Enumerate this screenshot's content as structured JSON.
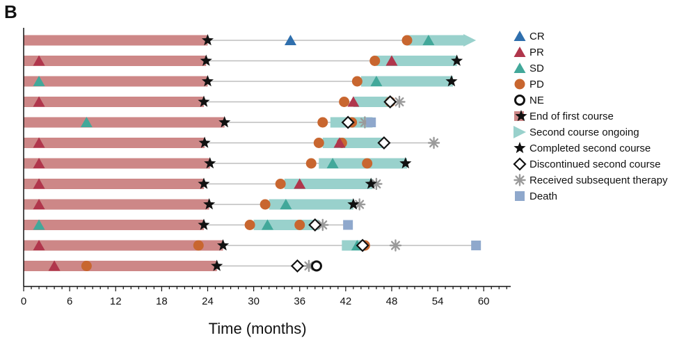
{
  "panel_label": "B",
  "chart_data": {
    "type": "swimmer",
    "xlabel": "Time (months)",
    "xlim": [
      0,
      63
    ],
    "xticks": [
      0,
      6,
      12,
      18,
      24,
      30,
      36,
      42,
      48,
      54,
      60
    ],
    "colors": {
      "first_course": "#cd8787",
      "second_course": "#99d1cc",
      "line": "#bdbdbd",
      "CR": "#2f6fad",
      "PR": "#b0364c",
      "SD": "#42a89a",
      "PD": "#c8662f",
      "NE": "#111111",
      "star": "#111111",
      "diamond": "#111111",
      "asterisk": "#9a9a9a",
      "death": "#8fa8cc"
    },
    "legend": [
      {
        "key": "CR",
        "label": "CR",
        "symbol": "triangle"
      },
      {
        "key": "PR",
        "label": "PR",
        "symbol": "triangle"
      },
      {
        "key": "SD",
        "label": "SD",
        "symbol": "triangle"
      },
      {
        "key": "PD",
        "label": "PD",
        "symbol": "circle"
      },
      {
        "key": "NE",
        "label": "NE",
        "symbol": "ring"
      },
      {
        "key": "end_first",
        "label": "End of first course",
        "symbol": "bar-star"
      },
      {
        "key": "second_ongoing",
        "label": "Second course ongoing",
        "symbol": "arrow"
      },
      {
        "key": "completed_second",
        "label": "Completed second course",
        "symbol": "star"
      },
      {
        "key": "discontinued_second",
        "label": "Discontinued second course",
        "symbol": "diamond"
      },
      {
        "key": "subsequent",
        "label": "Received subsequent therapy",
        "symbol": "asterisk"
      },
      {
        "key": "death",
        "label": "Death",
        "symbol": "square"
      }
    ],
    "patients": [
      {
        "first_end": 24.0,
        "line_end": 58.0,
        "second": [
          50.0,
          57.5
        ],
        "arrow": true,
        "markers": [
          [
            "star",
            24.0
          ],
          [
            "CR",
            34.8
          ],
          [
            "PD",
            50.0
          ],
          [
            "SD",
            52.8
          ]
        ]
      },
      {
        "first_end": 23.8,
        "line_end": 56.5,
        "second": [
          46.0,
          56.5
        ],
        "markers": [
          [
            "PR",
            2.0
          ],
          [
            "star",
            23.8
          ],
          [
            "PD",
            45.8
          ],
          [
            "PR",
            48.0
          ],
          [
            "star",
            56.5
          ]
        ]
      },
      {
        "first_end": 24.0,
        "line_end": 56.0,
        "second": [
          44.0,
          56.0
        ],
        "markers": [
          [
            "SD",
            2.0
          ],
          [
            "star",
            24.0
          ],
          [
            "PD",
            43.5
          ],
          [
            "SD",
            46.0
          ],
          [
            "star",
            55.8
          ]
        ]
      },
      {
        "first_end": 23.5,
        "line_end": 49.0,
        "second": [
          43.0,
          48.0
        ],
        "markers": [
          [
            "PR",
            2.0
          ],
          [
            "star",
            23.5
          ],
          [
            "PD",
            41.8
          ],
          [
            "PR",
            43.0
          ],
          [
            "PD",
            47.8
          ],
          [
            "diamond",
            47.8
          ],
          [
            "asterisk",
            49.0
          ]
        ]
      },
      {
        "first_end": 26.2,
        "line_end": 45.5,
        "second": [
          40.0,
          45.5
        ],
        "markers": [
          [
            "SD",
            8.2
          ],
          [
            "star",
            26.2
          ],
          [
            "PD",
            39.0
          ],
          [
            "PD",
            42.8
          ],
          [
            "diamond",
            42.3
          ],
          [
            "asterisk",
            44.5
          ],
          [
            "death",
            45.3
          ]
        ]
      },
      {
        "first_end": 23.6,
        "line_end": 53.5,
        "second": [
          39.0,
          47.0
        ],
        "markers": [
          [
            "PR",
            2.0
          ],
          [
            "star",
            23.6
          ],
          [
            "PD",
            38.5
          ],
          [
            "PD",
            41.5
          ],
          [
            "PR",
            41.2
          ],
          [
            "diamond",
            47.0
          ],
          [
            "asterisk",
            53.5
          ]
        ]
      },
      {
        "first_end": 24.3,
        "line_end": 50.0,
        "second": [
          38.5,
          50.0
        ],
        "markers": [
          [
            "PR",
            2.0
          ],
          [
            "star",
            24.3
          ],
          [
            "PD",
            37.5
          ],
          [
            "SD",
            40.3
          ],
          [
            "PD",
            44.8
          ],
          [
            "star",
            49.8
          ]
        ]
      },
      {
        "first_end": 23.5,
        "line_end": 46.0,
        "second": [
          34.0,
          45.5
        ],
        "markers": [
          [
            "PR",
            2.0
          ],
          [
            "star",
            23.5
          ],
          [
            "PD",
            33.5
          ],
          [
            "PR",
            36.0
          ],
          [
            "star",
            45.3
          ],
          [
            "asterisk",
            46.0
          ]
        ]
      },
      {
        "first_end": 24.2,
        "line_end": 43.8,
        "second": [
          32.0,
          43.0
        ],
        "markers": [
          [
            "PR",
            2.0
          ],
          [
            "star",
            24.2
          ],
          [
            "PD",
            31.5
          ],
          [
            "SD",
            34.2
          ],
          [
            "star",
            43.0
          ],
          [
            "asterisk",
            43.8
          ]
        ]
      },
      {
        "first_end": 23.5,
        "line_end": 42.5,
        "second": [
          30.0,
          38.5
        ],
        "markers": [
          [
            "SD",
            2.0
          ],
          [
            "star",
            23.5
          ],
          [
            "PD",
            29.5
          ],
          [
            "SD",
            31.8
          ],
          [
            "PD",
            36.0
          ],
          [
            "diamond",
            38.0
          ],
          [
            "asterisk",
            39.0
          ],
          [
            "death",
            42.3
          ]
        ]
      },
      {
        "first_end": 26.0,
        "line_end": 59.0,
        "second": [
          41.5,
          44.5
        ],
        "markers": [
          [
            "PR",
            2.0
          ],
          [
            "star",
            26.0
          ],
          [
            "PD",
            22.8
          ],
          [
            "SD",
            43.5
          ],
          [
            "PD",
            44.5
          ],
          [
            "diamond",
            44.2
          ],
          [
            "asterisk",
            48.5
          ],
          [
            "death",
            59.0
          ]
        ]
      },
      {
        "first_end": 25.2,
        "line_end": 38.6,
        "second": null,
        "markers": [
          [
            "PR",
            4.0
          ],
          [
            "PD",
            8.2
          ],
          [
            "star",
            25.2
          ],
          [
            "diamond",
            35.7
          ],
          [
            "asterisk",
            37.2
          ],
          [
            "NE",
            38.2
          ]
        ]
      }
    ]
  }
}
